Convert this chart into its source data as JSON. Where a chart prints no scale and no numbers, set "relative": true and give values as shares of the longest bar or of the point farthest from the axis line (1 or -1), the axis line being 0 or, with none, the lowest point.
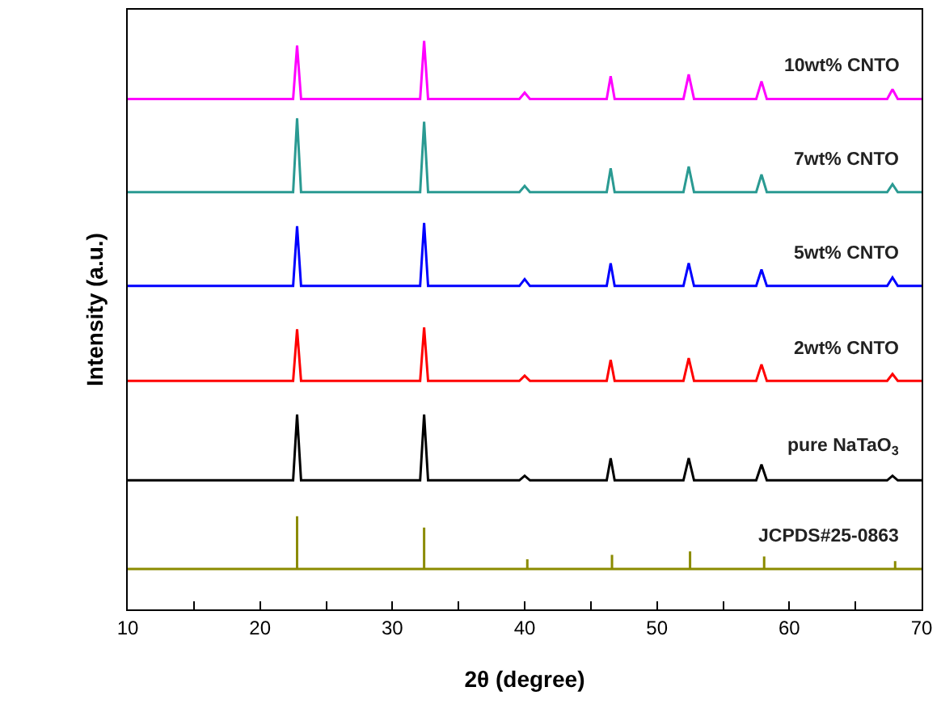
{
  "chart_data": {
    "type": "line",
    "relative": true,
    "xlabel": "2θ (degree)",
    "ylabel": "Intensity (a.u.)",
    "xlim": [
      10,
      70
    ],
    "xticks": [
      10,
      {
        "value": 15,
        "label": null
      },
      20,
      {
        "value": 25,
        "label": null
      },
      30,
      {
        "value": 35,
        "label": null
      },
      40,
      {
        "value": 45,
        "label": null
      },
      50,
      {
        "value": 55,
        "label": null
      },
      60,
      {
        "value": 65,
        "label": null
      },
      70
    ],
    "legend": false,
    "marker": "none",
    "line_style": "solid",
    "series": [
      {
        "name": "10wt% CNTO",
        "color": "#ff00ff",
        "x": [
          10,
          22.5,
          22.8,
          23.1,
          32.1,
          32.4,
          32.7,
          39.6,
          40.0,
          40.4,
          46.2,
          46.5,
          46.8,
          52.0,
          52.4,
          52.8,
          57.5,
          57.9,
          58.3,
          67.4,
          67.8,
          68.2,
          70
        ],
        "values": [
          0.898,
          0.898,
          0.992,
          0.898,
          0.898,
          1.0,
          0.898,
          0.898,
          0.909,
          0.898,
          0.898,
          0.938,
          0.898,
          0.898,
          0.941,
          0.898,
          0.898,
          0.929,
          0.898,
          0.898,
          0.915,
          0.898,
          0.898
        ]
      },
      {
        "name": "7wt% CNTO",
        "color": "#2a9a92",
        "x": [
          10,
          22.5,
          22.8,
          23.1,
          32.1,
          32.4,
          32.7,
          39.6,
          40.0,
          40.4,
          46.2,
          46.5,
          46.8,
          52.0,
          52.4,
          52.8,
          57.5,
          57.9,
          58.3,
          67.4,
          67.8,
          68.2,
          70
        ],
        "values": [
          0.734,
          0.734,
          0.864,
          0.734,
          0.734,
          0.858,
          0.734,
          0.734,
          0.745,
          0.734,
          0.734,
          0.776,
          0.734,
          0.734,
          0.779,
          0.734,
          0.734,
          0.765,
          0.734,
          0.734,
          0.748,
          0.734,
          0.734
        ]
      },
      {
        "name": "5wt% CNTO",
        "color": "#0000ff",
        "x": [
          10,
          22.5,
          22.8,
          23.1,
          32.1,
          32.4,
          32.7,
          39.6,
          40.0,
          40.4,
          46.2,
          46.5,
          46.8,
          52.0,
          52.4,
          52.8,
          57.5,
          57.9,
          58.3,
          67.4,
          67.8,
          68.2,
          70
        ],
        "values": [
          0.569,
          0.569,
          0.674,
          0.569,
          0.569,
          0.68,
          0.569,
          0.569,
          0.581,
          0.569,
          0.569,
          0.609,
          0.569,
          0.569,
          0.609,
          0.569,
          0.569,
          0.598,
          0.569,
          0.569,
          0.584,
          0.569,
          0.569
        ]
      },
      {
        "name": "2wt% CNTO",
        "color": "#ff0000",
        "x": [
          10,
          22.5,
          22.8,
          23.1,
          32.1,
          32.4,
          32.7,
          39.6,
          40.0,
          40.4,
          46.2,
          46.5,
          46.8,
          52.0,
          52.4,
          52.8,
          57.5,
          57.9,
          58.3,
          67.4,
          67.8,
          68.2,
          70
        ],
        "values": [
          0.402,
          0.402,
          0.493,
          0.402,
          0.402,
          0.496,
          0.402,
          0.402,
          0.411,
          0.402,
          0.402,
          0.439,
          0.402,
          0.402,
          0.442,
          0.402,
          0.402,
          0.431,
          0.402,
          0.402,
          0.414,
          0.402,
          0.402
        ]
      },
      {
        "name": "pure NaTaO$_{3}$",
        "color": "#000000",
        "x": [
          10,
          22.5,
          22.8,
          23.1,
          32.1,
          32.4,
          32.7,
          39.6,
          40.0,
          40.4,
          46.2,
          46.5,
          46.8,
          52.0,
          52.4,
          52.8,
          57.5,
          57.9,
          58.3,
          67.4,
          67.8,
          68.2,
          70
        ],
        "values": [
          0.227,
          0.227,
          0.343,
          0.227,
          0.227,
          0.343,
          0.227,
          0.227,
          0.235,
          0.227,
          0.227,
          0.266,
          0.227,
          0.227,
          0.266,
          0.227,
          0.227,
          0.255,
          0.227,
          0.227,
          0.235,
          0.227,
          0.227
        ]
      },
      {
        "name": "JCPDS#25-0863",
        "color": "#8b8b00",
        "x": [
          10,
          22.8,
          22.8,
          22.8,
          32.4,
          32.4,
          32.4,
          40.2,
          40.2,
          40.2,
          46.6,
          46.6,
          46.6,
          52.5,
          52.5,
          52.5,
          58.1,
          58.1,
          58.1,
          68.0,
          68.0,
          68.0,
          70
        ],
        "values": [
          0.071,
          0.071,
          0.164,
          0.071,
          0.071,
          0.144,
          0.071,
          0.071,
          0.088,
          0.071,
          0.071,
          0.096,
          0.071,
          0.071,
          0.102,
          0.071,
          0.071,
          0.093,
          0.071,
          0.071,
          0.085,
          0.071,
          0.071
        ]
      }
    ]
  }
}
